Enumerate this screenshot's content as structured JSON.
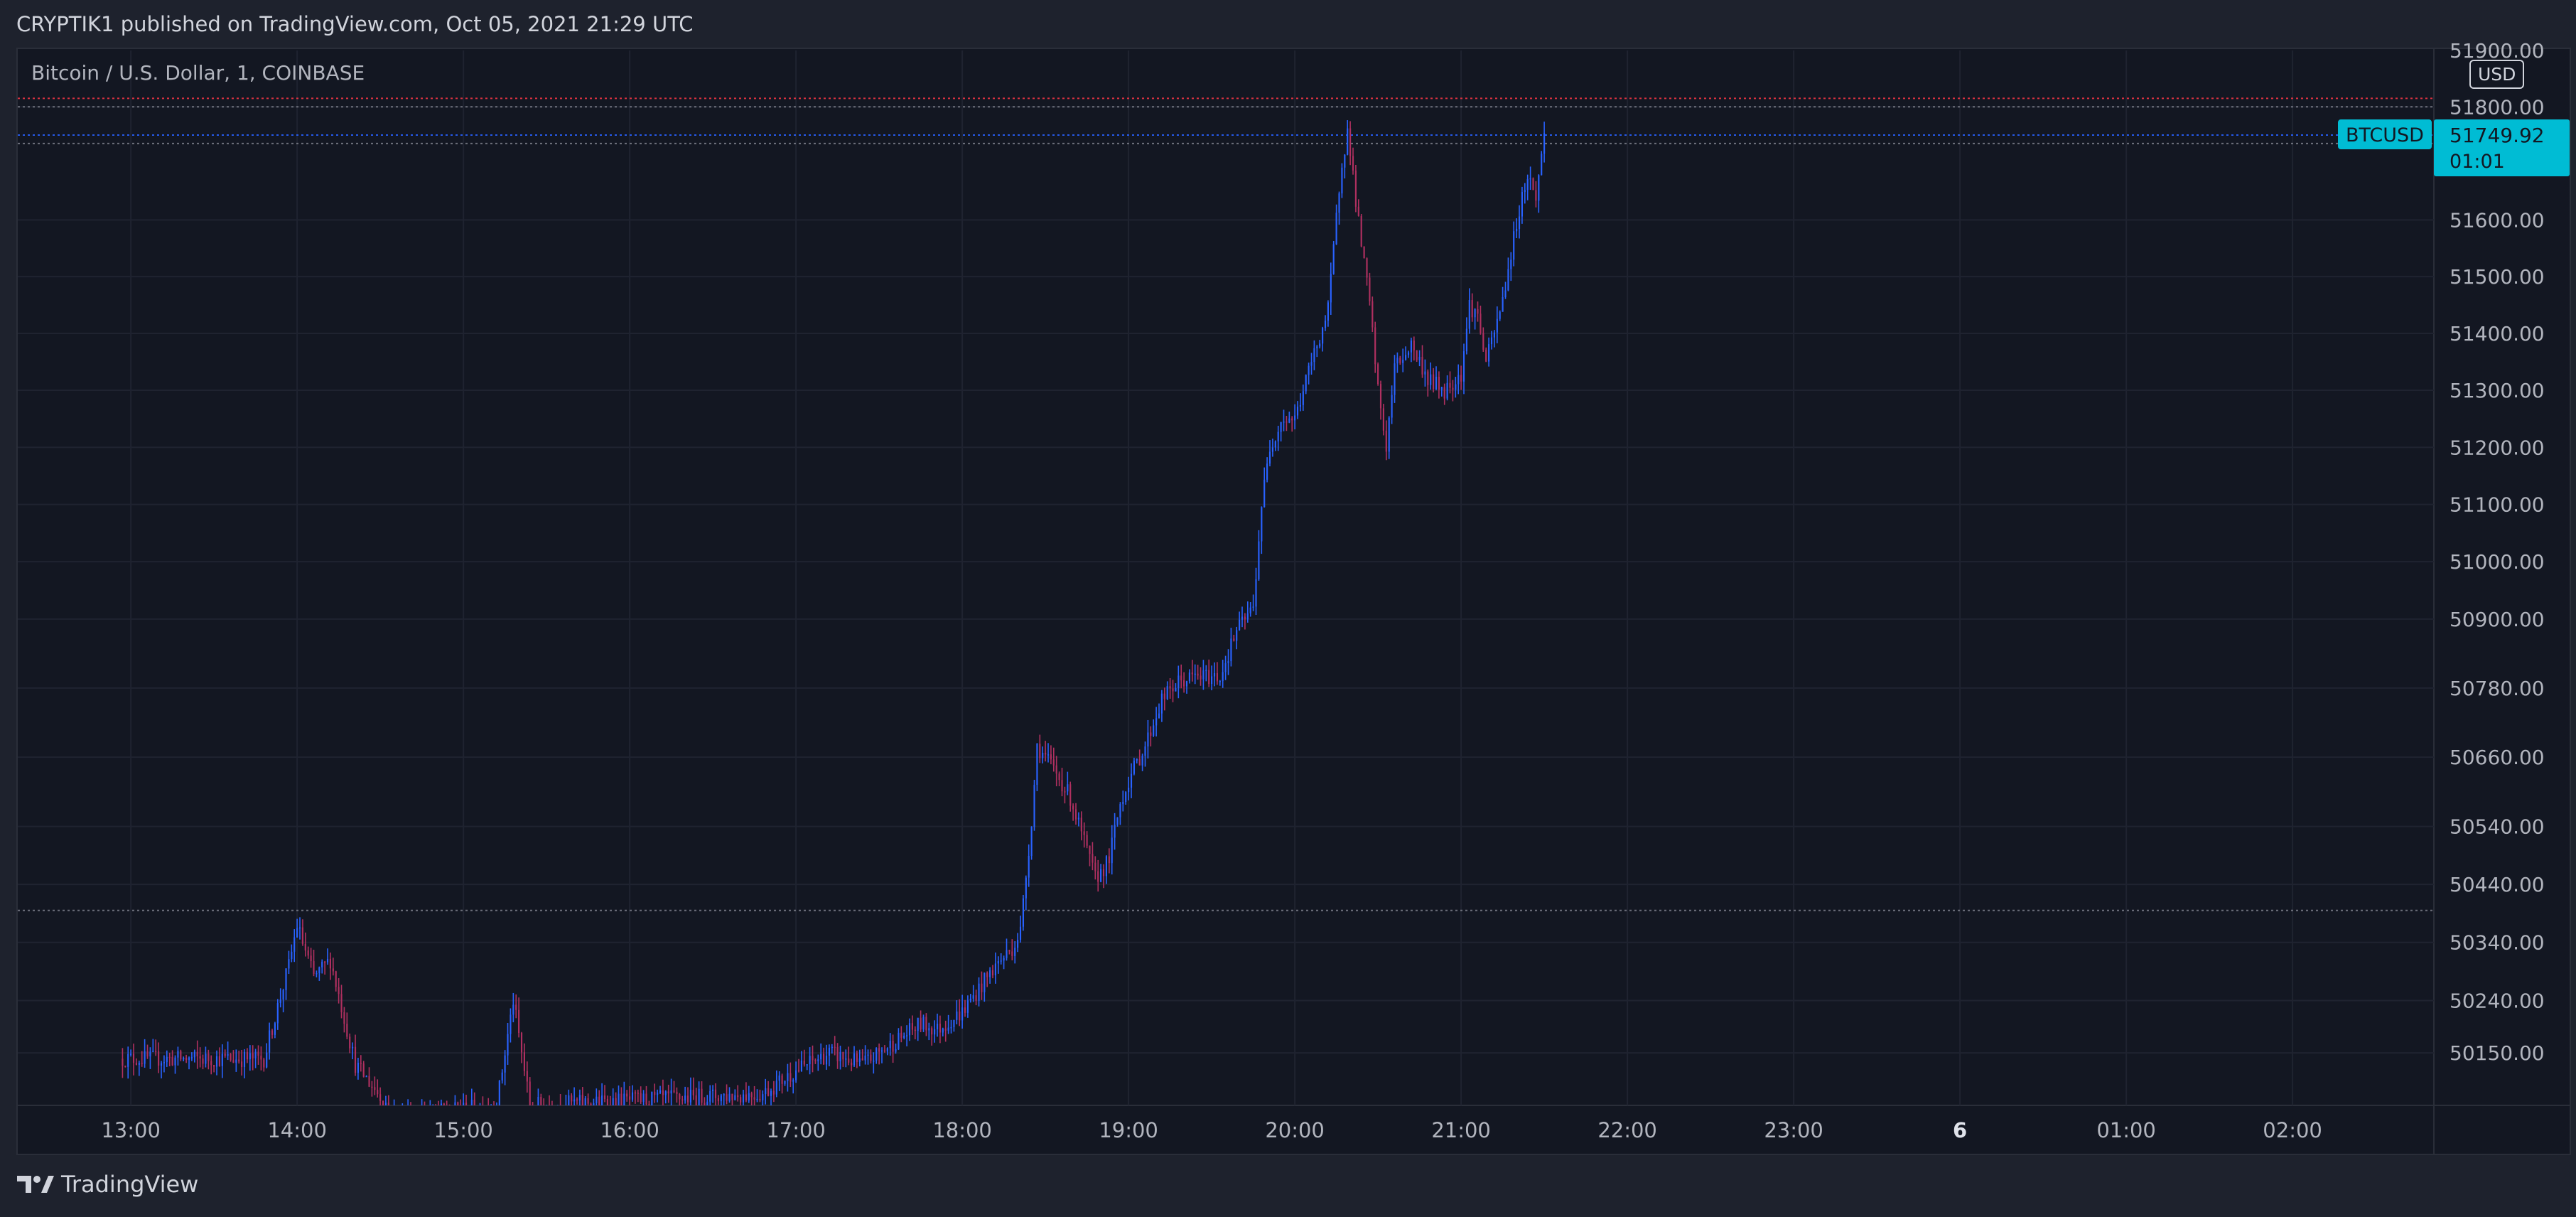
{
  "header": {
    "published_text": "CRYPTIK1 published on TradingView.com, Oct 05, 2021 21:29 UTC"
  },
  "chart_title": "Bitcoin / U.S. Dollar, 1, COINBASE",
  "currency": "USD",
  "price_label": {
    "symbol": "BTCUSD",
    "price": "51749.92",
    "countdown": "01:01",
    "color": "#00bcd4"
  },
  "footer": {
    "brand": "TradingView",
    "brand_icon": "tradingview-logo-icon"
  },
  "colors": {
    "background": "#131722",
    "frame": "#1e222d",
    "grid": "#1f2330",
    "up_candle": "#2962ff",
    "down_candle": "#b03060",
    "text": "#d1d4dc"
  },
  "chart_data": {
    "type": "candlestick",
    "title": "Bitcoin / U.S. Dollar, 1, COINBASE",
    "scale": "logarithmic",
    "grid": true,
    "y_ticks": [
      "50150.00",
      "50240.00",
      "50340.00",
      "50440.00",
      "50540.00",
      "50660.00",
      "50780.00",
      "50900.00",
      "51000.00",
      "51100.00",
      "51200.00",
      "51300.00",
      "51400.00",
      "51500.00",
      "51600.00",
      "51800.00",
      "51900.00"
    ],
    "y_tick_values": [
      50150,
      50240,
      50340,
      50440,
      50540,
      50660,
      50780,
      50900,
      51000,
      51100,
      51200,
      51300,
      51400,
      51500,
      51600,
      51800,
      51900
    ],
    "x_ticks": [
      "13:00",
      "14:00",
      "15:00",
      "16:00",
      "17:00",
      "18:00",
      "19:00",
      "20:00",
      "21:00",
      "22:00",
      "23:00",
      "6",
      "01:00",
      "02:00"
    ],
    "x_tick_hours": [
      13,
      14,
      15,
      16,
      17,
      18,
      19,
      20,
      21,
      22,
      23,
      24,
      25,
      26
    ],
    "x_range_hours": [
      12.32,
      26.85
    ],
    "y_range": [
      50060,
      51900
    ],
    "horizontal_levels": [
      {
        "price": 51815,
        "color": "#f23645"
      },
      {
        "price": 51800,
        "color": "#787b86"
      },
      {
        "price": 51749.92,
        "color": "#2962ff"
      },
      {
        "price": 51735,
        "color": "#787b86"
      },
      {
        "price": 50395,
        "color": "#787b86"
      }
    ],
    "price_path": [
      [
        13.8,
        50140
      ],
      [
        13.95,
        50300
      ],
      [
        14.0,
        50370
      ],
      [
        14.1,
        50280
      ],
      [
        14.2,
        50310
      ],
      [
        14.35,
        50130
      ],
      [
        14.6,
        50040
      ],
      [
        15.2,
        50060
      ],
      [
        15.3,
        50240
      ],
      [
        15.4,
        50060
      ],
      [
        16.8,
        50080
      ],
      [
        17.0,
        50120
      ],
      [
        17.2,
        50150
      ],
      [
        17.4,
        50130
      ],
      [
        17.6,
        50170
      ],
      [
        17.75,
        50200
      ],
      [
        17.85,
        50190
      ],
      [
        18.0,
        50220
      ],
      [
        18.1,
        50260
      ],
      [
        18.2,
        50300
      ],
      [
        18.3,
        50330
      ],
      [
        18.35,
        50360
      ],
      [
        18.42,
        50560
      ],
      [
        18.45,
        50680
      ],
      [
        18.55,
        50640
      ],
      [
        18.65,
        50590
      ],
      [
        18.8,
        50450
      ],
      [
        18.88,
        50480
      ],
      [
        18.95,
        50580
      ],
      [
        19.0,
        50620
      ],
      [
        19.1,
        50680
      ],
      [
        19.2,
        50760
      ],
      [
        19.3,
        50790
      ],
      [
        19.4,
        50800
      ],
      [
        19.55,
        50800
      ],
      [
        19.65,
        50880
      ],
      [
        19.75,
        50920
      ],
      [
        19.8,
        51100
      ],
      [
        19.85,
        51200
      ],
      [
        19.92,
        51250
      ],
      [
        20.0,
        51250
      ],
      [
        20.1,
        51350
      ],
      [
        20.2,
        51440
      ],
      [
        20.28,
        51700
      ],
      [
        20.32,
        51760
      ],
      [
        20.38,
        51600
      ],
      [
        20.45,
        51450
      ],
      [
        20.5,
        51300
      ],
      [
        20.55,
        51200
      ],
      [
        20.6,
        51340
      ],
      [
        20.7,
        51380
      ],
      [
        20.8,
        51320
      ],
      [
        20.9,
        51300
      ],
      [
        21.0,
        51330
      ],
      [
        21.05,
        51450
      ],
      [
        21.1,
        51430
      ],
      [
        21.15,
        51350
      ],
      [
        21.2,
        51400
      ],
      [
        21.25,
        51460
      ],
      [
        21.3,
        51540
      ],
      [
        21.35,
        51620
      ],
      [
        21.4,
        51680
      ],
      [
        21.45,
        51640
      ],
      [
        21.5,
        51750
      ]
    ]
  }
}
